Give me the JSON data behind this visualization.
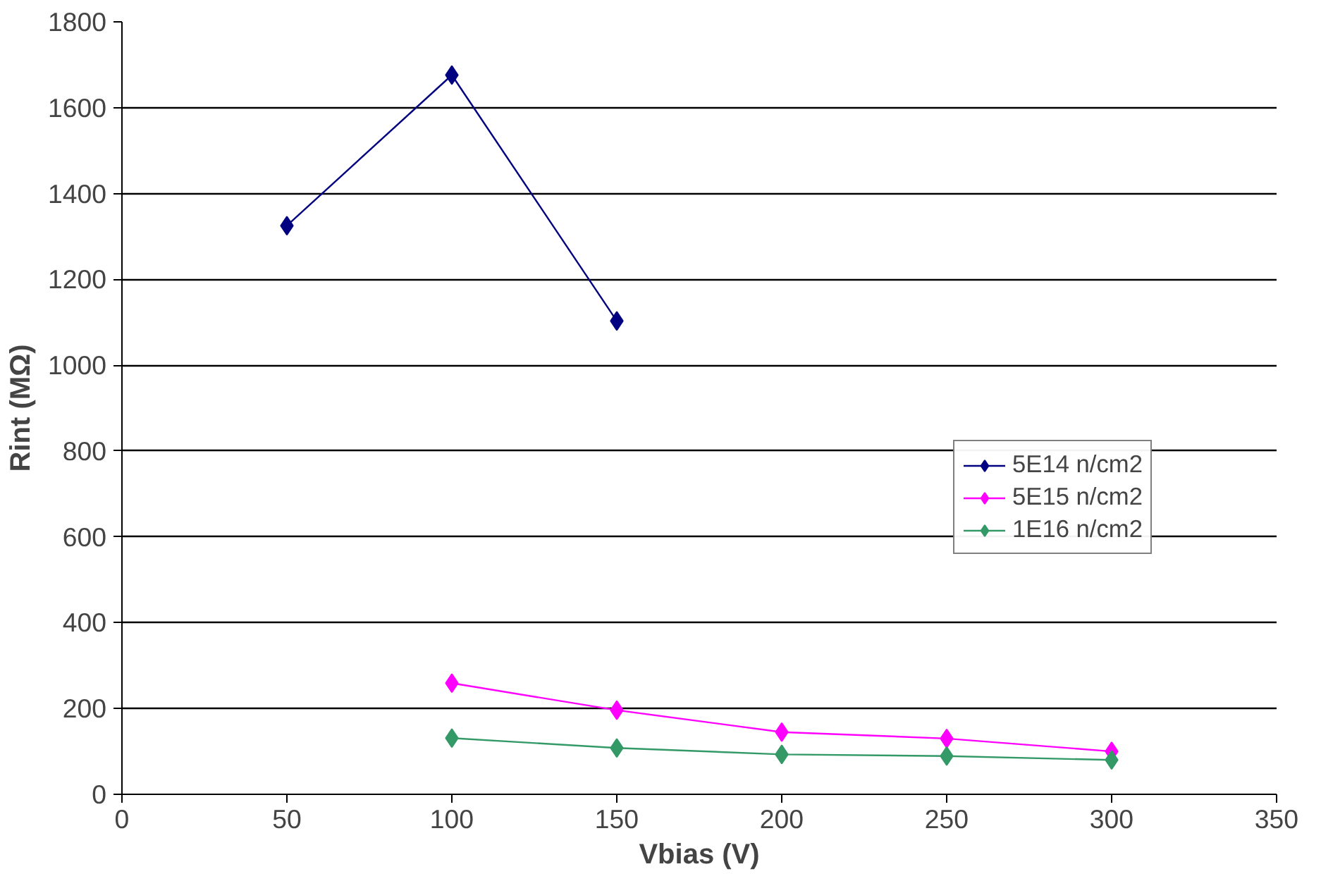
{
  "chart_data": {
    "type": "line",
    "xlabel": "Vbias (V)",
    "ylabel": "Rint (MΩ)",
    "xlim": [
      0,
      350
    ],
    "xticks": [
      0,
      50,
      100,
      150,
      200,
      250,
      300,
      350
    ],
    "ylim": [
      0,
      1800
    ],
    "yticks": [
      0,
      200,
      400,
      600,
      800,
      1000,
      1200,
      1400,
      1600,
      1800
    ],
    "grid": "y",
    "legend": "right",
    "marker": "diamond",
    "line_style": "solid",
    "series": [
      {
        "name": "5E14 n/cm2",
        "color": "#000080",
        "x": [
          50,
          100,
          150
        ],
        "values": [
          1325,
          1676,
          1103
        ]
      },
      {
        "name": "5E15 n/cm2",
        "color": "#ff00ff",
        "x": [
          100,
          150,
          200,
          250,
          300
        ],
        "values": [
          259,
          196,
          145,
          130,
          100
        ]
      },
      {
        "name": "1E16 n/cm2",
        "color": "#339966",
        "x": [
          100,
          150,
          200,
          250,
          300
        ],
        "values": [
          131,
          108,
          93,
          89,
          80
        ]
      }
    ]
  }
}
